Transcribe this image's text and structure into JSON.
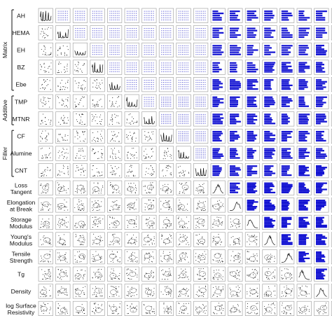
{
  "chart_data": {
    "type": "scatter",
    "variables": [
      "AH",
      "HEMA",
      "EH",
      "BZ",
      "Ebe",
      "TMP",
      "MTNR",
      "CF",
      "Alumine",
      "CNT",
      "Loss Tangent",
      "Elongation at Break",
      "Storage Modulus",
      "Young's Modulus",
      "Tensile Strength",
      "Tg",
      "Density",
      "log Surface Resistivity"
    ],
    "row_labels": [
      [
        "AH"
      ],
      [
        "HEMA"
      ],
      [
        "EH"
      ],
      [
        "BZ"
      ],
      [
        "Ebe"
      ],
      [
        "TMP"
      ],
      [
        "MTNR"
      ],
      [
        "CF"
      ],
      [
        "Alumine"
      ],
      [
        "CNT"
      ],
      [
        "Loss",
        "Tangent"
      ],
      [
        "Elongation",
        "at Break"
      ],
      [
        "Storage",
        "Modulus"
      ],
      [
        "Young's",
        "Modulus"
      ],
      [
        "Tensile",
        "Strength"
      ],
      [
        "Tg"
      ],
      [
        "Density"
      ],
      [
        "log Surface",
        "Resistivity"
      ]
    ],
    "groups": [
      {
        "label": "Matrix",
        "first_row": 0,
        "last_row": 4
      },
      {
        "label": "Additive",
        "first_row": 5,
        "last_row": 6
      },
      {
        "label": "Filler",
        "first_row": 7,
        "last_row": 9
      }
    ],
    "n_inputs": 10,
    "colors": {
      "upper_input_input": "#3a3acc",
      "upper_input_output": "#1414d2",
      "lower": "#222222",
      "diagonal": "#111111",
      "cell_border": "#9a9a9a"
    }
  }
}
